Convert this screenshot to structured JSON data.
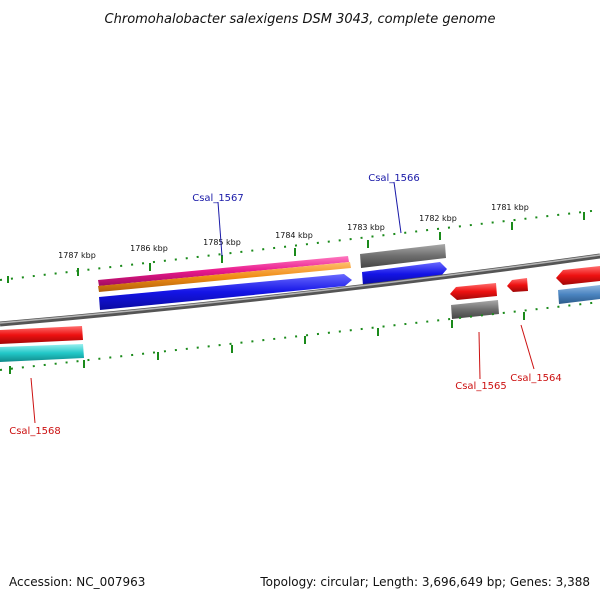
{
  "title": "Chromohalobacter salexigens DSM 3043, complete genome",
  "accession": "Accession: NC_007963",
  "summary": "Topology: circular; Length: 3,696,649 bp; Genes: 3,388",
  "kbp_labels": [
    "1787 kbp",
    "1786 kbp",
    "1785 kbp",
    "1784 kbp",
    "1783 kbp",
    "1782 kbp",
    "1781 kbp"
  ],
  "gene_labels": {
    "csal_1567": "Csal_1567",
    "csal_1566": "Csal_1566",
    "csal_1565": "Csal_1565",
    "csal_1564": "Csal_1564",
    "csal_1568": "Csal_1568"
  },
  "colors": {
    "backbone": "#8a8a8a",
    "tick": "#1a8a1a",
    "forward_label": "#1a1aa8",
    "reverse_label": "#cc1111",
    "magenta": "#e8188c",
    "orange": "#f08c14",
    "blue": "#1414e6",
    "gray": "#6e6e6e",
    "red": "#ee1111",
    "cyan": "#22c8c8",
    "steelblue": "#4a84c0"
  }
}
